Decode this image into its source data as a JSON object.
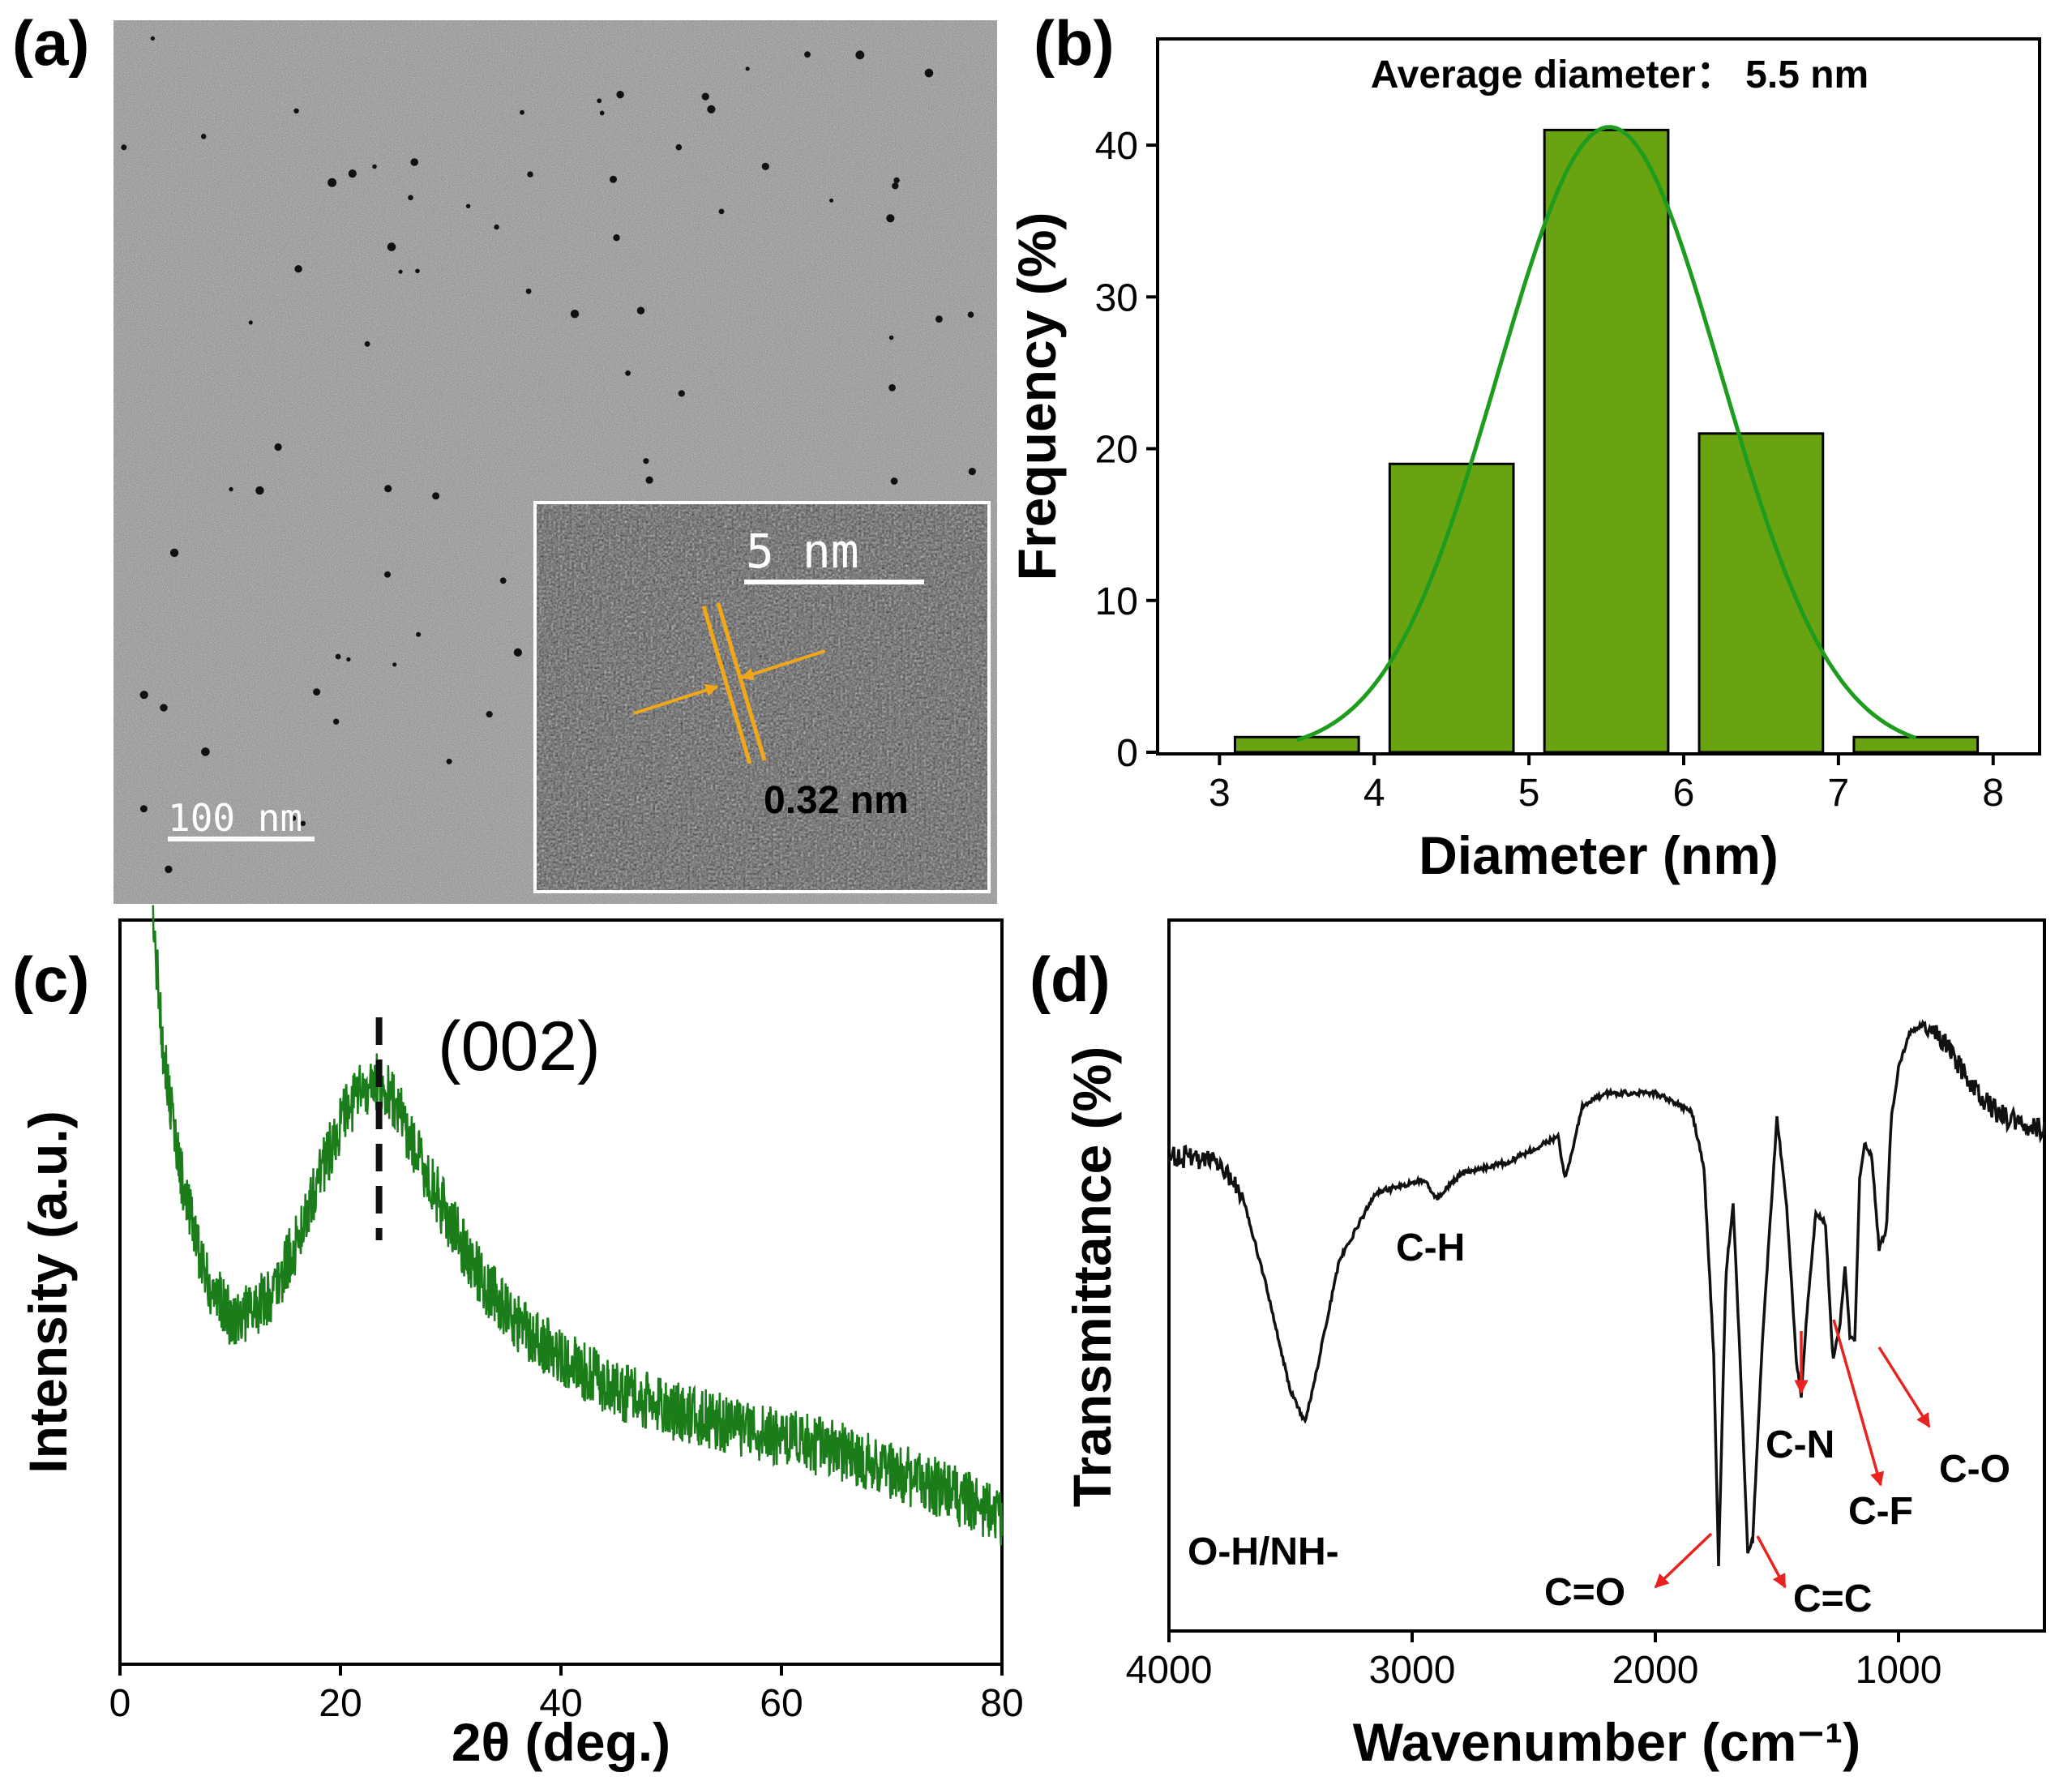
{
  "colors": {
    "bar_fill": "#6aa312",
    "fit_line": "#1e9c1e",
    "xrd_line": "#1a7d1a",
    "arrow": "#e8231f",
    "lattice": "#f0a818"
  },
  "chart_data": [
    {
      "panel": "(a)",
      "type": "image",
      "scale_bar_label": "100 nm",
      "inset": {
        "scale_bar_label": "5 nm",
        "lattice_spacing_label": "0.32 nm"
      }
    },
    {
      "panel": "(b)",
      "type": "bar",
      "title": "Average diameter： 5.5 nm",
      "xlabel": "Diameter (nm)",
      "ylabel": "Frequency (%)",
      "xlim": [
        2.6,
        8.3
      ],
      "ylim": [
        0,
        47
      ],
      "xticks": [
        3,
        4,
        5,
        6,
        7,
        8
      ],
      "yticks": [
        0,
        10,
        20,
        30,
        40
      ],
      "bins": [
        {
          "x0": 3.1,
          "x1": 3.9,
          "value": 1
        },
        {
          "x0": 4.1,
          "x1": 4.9,
          "value": 19
        },
        {
          "x0": 5.1,
          "x1": 5.9,
          "value": 41
        },
        {
          "x0": 6.1,
          "x1": 6.9,
          "value": 21
        },
        {
          "x0": 7.1,
          "x1": 7.9,
          "value": 1
        }
      ],
      "fit": {
        "type": "gaussian",
        "mean": 5.52,
        "sigma": 0.72,
        "amplitude": 41.2,
        "range": [
          3.5,
          7.5
        ]
      }
    },
    {
      "panel": "(c)",
      "type": "line",
      "xlabel": "2θ (deg.)",
      "ylabel": "Intensity (a.u.)",
      "xlim": [
        0,
        80
      ],
      "ylim": [
        0,
        100
      ],
      "xticks": [
        0,
        20,
        40,
        60,
        80
      ],
      "peak_label": "(002)",
      "peak_position": 23.5,
      "x": [
        3,
        4,
        5,
        6,
        8,
        10,
        12,
        14,
        16,
        18,
        20,
        22,
        23.5,
        25,
        27,
        30,
        33,
        36,
        40,
        45,
        50,
        55,
        60,
        65,
        70,
        75,
        80
      ],
      "y": [
        100,
        80,
        68,
        58,
        46,
        41,
        42,
        45,
        52,
        62,
        70,
        75,
        76,
        73,
        65,
        55,
        46,
        40,
        35,
        30,
        27,
        25,
        23,
        21,
        18,
        15,
        11
      ]
    },
    {
      "panel": "(d)",
      "type": "line",
      "xlabel": "Wavenumber (cm⁻¹)",
      "ylabel": "Transmittance (%)",
      "xlim": [
        4000,
        400
      ],
      "ylim": [
        0,
        100
      ],
      "xticks": [
        4000,
        3000,
        2000,
        1000
      ],
      "x": [
        4000,
        3800,
        3700,
        3600,
        3500,
        3440,
        3400,
        3300,
        3150,
        2950,
        2900,
        2800,
        2600,
        2400,
        2370,
        2340,
        2300,
        2200,
        2000,
        1850,
        1800,
        1760,
        1740,
        1710,
        1680,
        1650,
        1620,
        1600,
        1560,
        1520,
        1500,
        1460,
        1420,
        1400,
        1380,
        1340,
        1300,
        1270,
        1240,
        1220,
        1200,
        1180,
        1160,
        1140,
        1110,
        1080,
        1050,
        1030,
        1000,
        950,
        900,
        800,
        700,
        650,
        600,
        500,
        400
      ],
      "y": [
        70,
        69,
        64,
        49,
        32,
        27,
        34,
        53,
        64,
        66,
        63,
        67,
        69,
        73,
        66,
        71,
        78,
        80,
        80,
        77,
        68,
        38,
        4,
        51,
        62,
        36,
        6,
        8,
        40,
        64,
        76,
        62,
        37,
        31,
        43,
        61,
        59,
        37,
        43,
        52,
        41,
        40,
        66,
        72,
        70,
        55,
        58,
        76,
        84,
        90,
        91,
        88,
        81,
        79,
        77,
        75,
        74
      ],
      "annotations": [
        "O-H/NH-",
        "C-H",
        "C=O",
        "C=C",
        "C-N",
        "C-F",
        "C-O"
      ]
    }
  ]
}
